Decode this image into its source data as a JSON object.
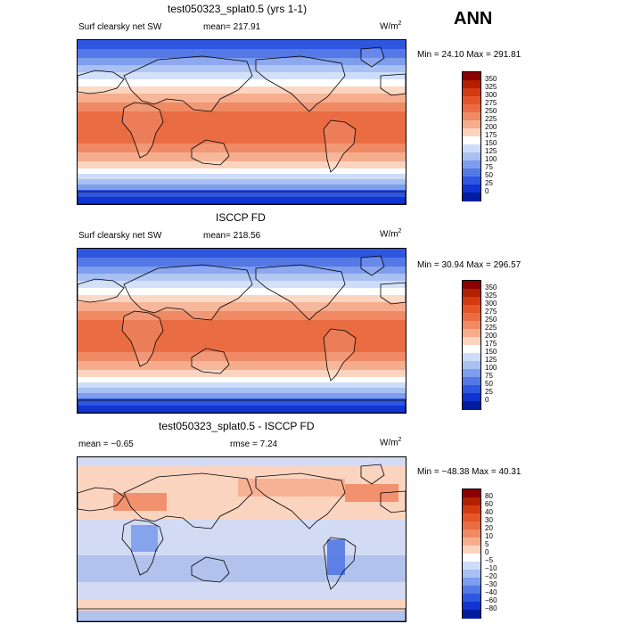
{
  "annual_label": "ANN",
  "panels": [
    {
      "title": "test050323_splat0.5 (yrs 1-1)",
      "variable": "Surf clearsky net SW",
      "mean_text": "mean= 217.91",
      "units": "W/m",
      "units_sup": "2",
      "minmax": "Min =  24.10 Max = 291.81",
      "colorbar_labels": [
        "350",
        "325",
        "300",
        "275",
        "250",
        "225",
        "200",
        "175",
        "150",
        "125",
        "100",
        "75",
        "50",
        "25",
        "0"
      ],
      "colorbar_colors": [
        "#8b0000",
        "#b22000",
        "#d43a12",
        "#e4552b",
        "#ea6c43",
        "#f08a64",
        "#f6ad8e",
        "#fbd4c0",
        "#ffffff",
        "#cddcf8",
        "#a8c0f2",
        "#7d9ded",
        "#5479e6",
        "#2e56df",
        "#1033d2",
        "#001d9e"
      ]
    },
    {
      "title": "ISCCP FD",
      "variable": "Surf clearsky net SW",
      "mean_text": "mean= 218.56",
      "units": "W/m",
      "units_sup": "2",
      "minmax": "Min =  30.94 Max = 296.57",
      "colorbar_labels": [
        "350",
        "325",
        "300",
        "275",
        "250",
        "225",
        "200",
        "175",
        "150",
        "125",
        "100",
        "75",
        "50",
        "25",
        "0"
      ],
      "colorbar_colors": [
        "#8b0000",
        "#b22000",
        "#d43a12",
        "#e4552b",
        "#ea6c43",
        "#f08a64",
        "#f6ad8e",
        "#fbd4c0",
        "#ffffff",
        "#cddcf8",
        "#a8c0f2",
        "#7d9ded",
        "#5479e6",
        "#2e56df",
        "#1033d2",
        "#001d9e"
      ]
    },
    {
      "title": "test050323_splat0.5 - ISCCP FD",
      "mean_text": "mean =  −0.65",
      "rmse_text": "rmse =   7.24",
      "units": "W/m",
      "units_sup": "2",
      "minmax": "Min = −48.38 Max =  40.31",
      "colorbar_labels": [
        "80",
        "60",
        "40",
        "30",
        "20",
        "10",
        "5",
        "0",
        "−5",
        "−10",
        "−20",
        "−30",
        "−40",
        "−60",
        "−80"
      ],
      "colorbar_colors": [
        "#8b0000",
        "#b22000",
        "#d43a12",
        "#e4552b",
        "#ea6c43",
        "#f08a64",
        "#f6ad8e",
        "#fbd4c0",
        "#ffffff",
        "#cddcf8",
        "#a8c0f2",
        "#7d9ded",
        "#5479e6",
        "#2e56df",
        "#1033d2",
        "#001d9e"
      ]
    }
  ]
}
